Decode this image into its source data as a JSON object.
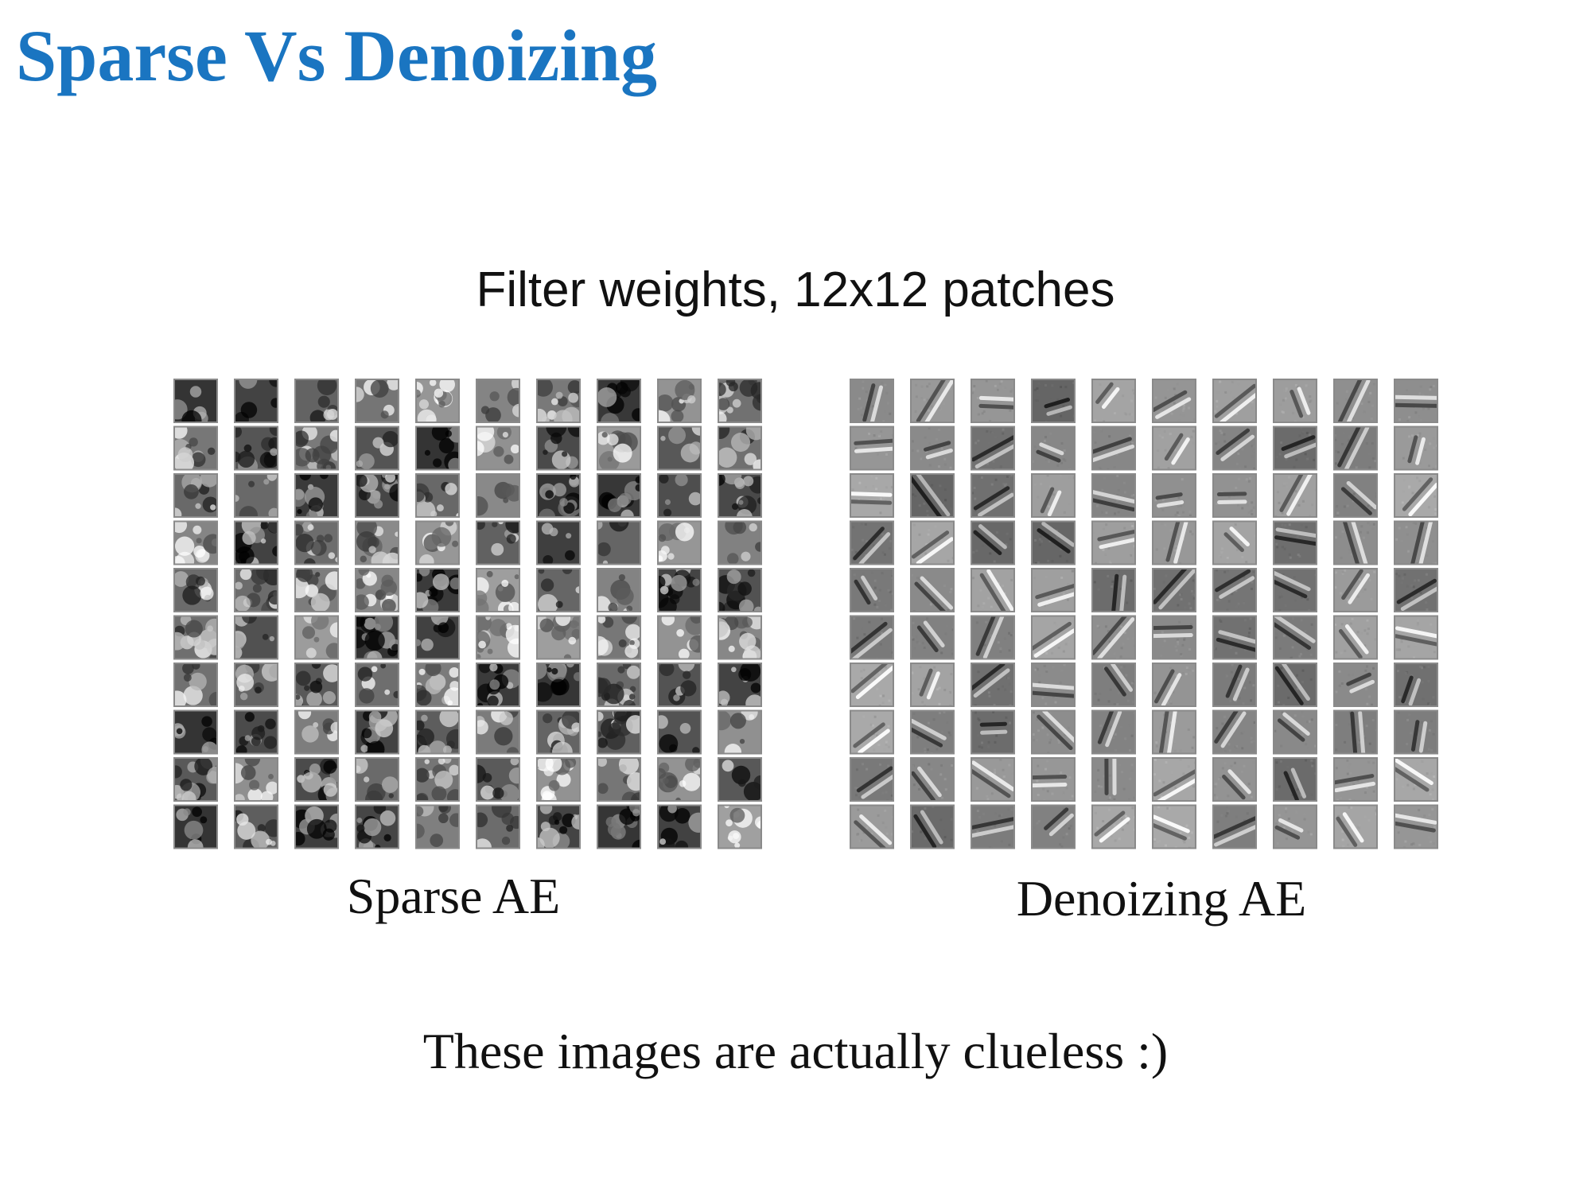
{
  "slide": {
    "title": "Sparse Vs Denoizing",
    "title_color": "#1a75c1",
    "subtitle": "Filter weights, 12x12 patches",
    "footer": "These images are actually clueless :)"
  },
  "panels": {
    "left": {
      "caption": "Sparse AE",
      "rows": 10,
      "cols": 10,
      "style": "blob"
    },
    "right": {
      "caption": "Denoizing AE",
      "rows": 10,
      "cols": 10,
      "style": "stroke"
    }
  }
}
